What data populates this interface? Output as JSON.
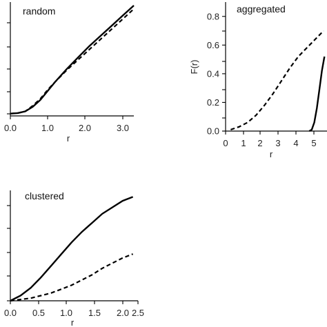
{
  "chart_data": [
    {
      "id": "random",
      "type": "line",
      "title": "random",
      "xlabel": "r",
      "ylabel": "",
      "xlim": [
        0,
        3.3
      ],
      "ylim": [
        0,
        1
      ],
      "xticks": [
        "0.0",
        "1.0",
        "2.0",
        "3.0"
      ],
      "series": [
        {
          "style": "solid",
          "x": [
            0,
            0.2,
            0.4,
            0.6,
            0.8,
            1.0,
            1.2,
            1.5,
            1.8,
            2.1,
            2.4,
            2.7,
            3.0,
            3.3
          ],
          "y": [
            0.02,
            0.025,
            0.04,
            0.08,
            0.14,
            0.22,
            0.3,
            0.41,
            0.51,
            0.61,
            0.7,
            0.79,
            0.88,
            0.97
          ]
        },
        {
          "style": "dashed",
          "x": [
            0,
            0.2,
            0.4,
            0.6,
            0.8,
            1.0,
            1.2,
            1.5,
            1.8,
            2.1,
            2.4,
            2.7,
            3.0,
            3.3
          ],
          "y": [
            0.02,
            0.025,
            0.04,
            0.09,
            0.15,
            0.23,
            0.3,
            0.4,
            0.49,
            0.58,
            0.67,
            0.76,
            0.85,
            0.94
          ]
        }
      ]
    },
    {
      "id": "aggregated",
      "type": "line",
      "title": "aggregated",
      "xlabel": "r",
      "ylabel": "F(r)",
      "xlim": [
        0,
        6
      ],
      "ylim": [
        0,
        0.9
      ],
      "xticks": [
        "0",
        "1",
        "2",
        "3",
        "4",
        "5"
      ],
      "yticks": [
        "0.0",
        "0.2",
        "0.4",
        "0.6",
        "0.8"
      ],
      "series": [
        {
          "style": "dashed",
          "x": [
            0.3,
            0.8,
            1.3,
            1.8,
            2.3,
            2.8,
            3.3,
            3.8,
            4.3,
            4.8,
            5.3,
            5.8
          ],
          "y": [
            0.01,
            0.03,
            0.06,
            0.11,
            0.18,
            0.26,
            0.35,
            0.44,
            0.52,
            0.58,
            0.64,
            0.7
          ]
        },
        {
          "style": "solid",
          "x": [
            4.95,
            5.1,
            5.25,
            5.4,
            5.55,
            5.7,
            5.85
          ],
          "y": [
            0.0,
            0.01,
            0.06,
            0.16,
            0.29,
            0.42,
            0.52
          ]
        }
      ]
    },
    {
      "id": "clustered",
      "type": "line",
      "title": "clustered",
      "xlabel": "r",
      "ylabel": "",
      "xlim": [
        0,
        2.5
      ],
      "ylim": [
        0,
        0.85
      ],
      "xticks": [
        "0.0",
        "0.5",
        "1.0",
        "1.5",
        "2.0",
        "2.5"
      ],
      "series": [
        {
          "style": "solid",
          "x": [
            0,
            0.2,
            0.4,
            0.6,
            0.8,
            1.0,
            1.2,
            1.4,
            1.6,
            1.8,
            2.0,
            2.2,
            2.4
          ],
          "y": [
            0.0,
            0.04,
            0.1,
            0.18,
            0.27,
            0.36,
            0.45,
            0.53,
            0.6,
            0.67,
            0.72,
            0.77,
            0.8
          ]
        },
        {
          "style": "dashed",
          "x": [
            0,
            0.2,
            0.4,
            0.6,
            0.8,
            1.0,
            1.2,
            1.4,
            1.6,
            1.8,
            2.0,
            2.2,
            2.4
          ],
          "y": [
            0.0,
            0.01,
            0.02,
            0.04,
            0.06,
            0.09,
            0.12,
            0.16,
            0.2,
            0.25,
            0.29,
            0.33,
            0.36
          ]
        }
      ]
    }
  ]
}
